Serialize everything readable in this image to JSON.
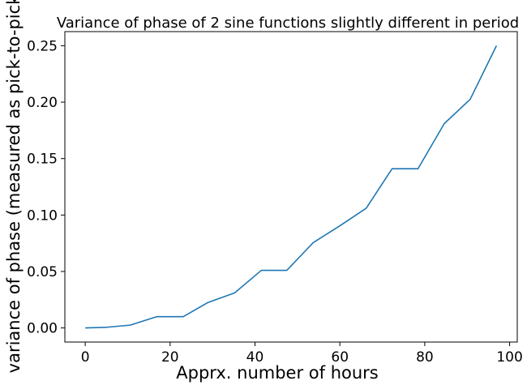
{
  "chart_data": {
    "type": "line",
    "title": "Variance of phase of 2 sine functions slightly different in period",
    "xlabel": "Apprx. number of hours",
    "ylabel": "variance of phase (measured as pick-to-pick",
    "xlim": [
      -4.8,
      101.8
    ],
    "ylim": [
      -0.0125,
      0.2625
    ],
    "xticks": [
      0,
      20,
      40,
      60,
      80,
      100
    ],
    "xtick_labels": [
      "0",
      "20",
      "40",
      "60",
      "80",
      "100"
    ],
    "yticks": [
      0.0,
      0.05,
      0.1,
      0.15,
      0.2,
      0.25
    ],
    "ytick_labels": [
      "0.00",
      "0.05",
      "0.10",
      "0.15",
      "0.20",
      "0.25"
    ],
    "grid": false,
    "legend": "none",
    "series": [
      {
        "color": "#1f77b4",
        "x": [
          0,
          4.8,
          10.6,
          16.9,
          23.1,
          28.9,
          35.2,
          41.5,
          47.5,
          53.7,
          60.0,
          66.2,
          72.3,
          78.4,
          84.6,
          90.7,
          96.9
        ],
        "y": [
          0.0,
          0.0005,
          0.0025,
          0.01,
          0.01,
          0.0225,
          0.031,
          0.051,
          0.051,
          0.0755,
          0.0905,
          0.106,
          0.141,
          0.141,
          0.181,
          0.2025,
          0.25
        ]
      }
    ]
  }
}
